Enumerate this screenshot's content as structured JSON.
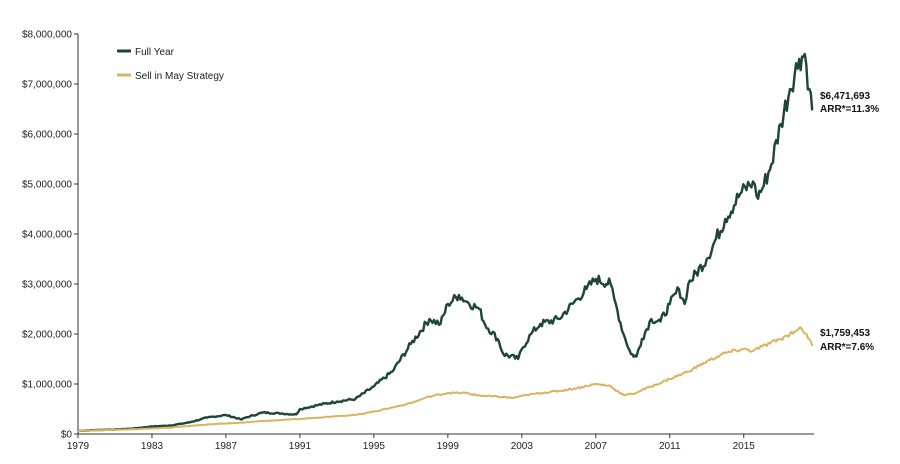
{
  "chart_data": {
    "type": "line",
    "title": "",
    "xlabel": "",
    "ylabel": "",
    "xlim": [
      1979,
      2018.8
    ],
    "ylim": [
      0,
      8000000
    ],
    "x_ticks": [
      "1979",
      "1983",
      "1987",
      "1991",
      "1995",
      "1999",
      "2003",
      "2007",
      "2011",
      "2015"
    ],
    "y_ticks": [
      "$0",
      "$1,000,000",
      "$2,000,000",
      "$3,000,000",
      "$4,000,000",
      "$5,000,000",
      "$6,000,000",
      "$7,000,000",
      "$8,000,000"
    ],
    "grid": false,
    "legend_position": "top-left",
    "series": [
      {
        "name": "Full Year",
        "color": "#1d4634",
        "end_value_label": "$6,471,693",
        "end_rate_label": "ARR*=11.3%",
        "points": [
          [
            1979,
            60000
          ],
          [
            1980,
            80000
          ],
          [
            1981,
            90000
          ],
          [
            1982,
            110000
          ],
          [
            1983,
            150000
          ],
          [
            1984,
            170000
          ],
          [
            1985,
            230000
          ],
          [
            1986,
            330000
          ],
          [
            1987,
            380000
          ],
          [
            1987.85,
            290000
          ],
          [
            1988,
            320000
          ],
          [
            1989,
            430000
          ],
          [
            1990,
            410000
          ],
          [
            1990.8,
            390000
          ],
          [
            1991,
            500000
          ],
          [
            1992,
            580000
          ],
          [
            1993,
            650000
          ],
          [
            1994,
            700000
          ],
          [
            1995,
            950000
          ],
          [
            1996,
            1250000
          ],
          [
            1997,
            1800000
          ],
          [
            1998,
            2300000
          ],
          [
            1998.6,
            2200000
          ],
          [
            1999,
            2600000
          ],
          [
            1999.6,
            2780000
          ],
          [
            2000,
            2650000
          ],
          [
            2000.7,
            2500000
          ],
          [
            2001,
            2200000
          ],
          [
            2001.7,
            1900000
          ],
          [
            2002,
            1600000
          ],
          [
            2002.8,
            1500000
          ],
          [
            2003,
            1700000
          ],
          [
            2003.5,
            2000000
          ],
          [
            2004,
            2200000
          ],
          [
            2005,
            2300000
          ],
          [
            2006,
            2700000
          ],
          [
            2006.5,
            2900000
          ],
          [
            2007,
            3100000
          ],
          [
            2007.8,
            3000000
          ],
          [
            2008,
            2700000
          ],
          [
            2008.5,
            2000000
          ],
          [
            2008.9,
            1600000
          ],
          [
            2009.2,
            1550000
          ],
          [
            2009.5,
            1900000
          ],
          [
            2010,
            2300000
          ],
          [
            2010.5,
            2250000
          ],
          [
            2011,
            2600000
          ],
          [
            2011.5,
            2900000
          ],
          [
            2011.8,
            2600000
          ],
          [
            2012,
            3000000
          ],
          [
            2013,
            3500000
          ],
          [
            2014,
            4300000
          ],
          [
            2014.8,
            4800000
          ],
          [
            2015.5,
            5050000
          ],
          [
            2015.7,
            4750000
          ],
          [
            2016,
            4900000
          ],
          [
            2016.5,
            5400000
          ],
          [
            2017,
            6200000
          ],
          [
            2017.5,
            6900000
          ],
          [
            2018,
            7500000
          ],
          [
            2018.3,
            7600000
          ],
          [
            2018.55,
            6900000
          ],
          [
            2018.7,
            6471693
          ]
        ]
      },
      {
        "name": "Sell in May Strategy",
        "color": "#d8b45f",
        "end_value_label": "$1,759,453",
        "end_rate_label": "ARR*=7.6%",
        "points": [
          [
            1979,
            60000
          ],
          [
            1980,
            75000
          ],
          [
            1981,
            85000
          ],
          [
            1982,
            95000
          ],
          [
            1983,
            110000
          ],
          [
            1984,
            130000
          ],
          [
            1985,
            160000
          ],
          [
            1986,
            190000
          ],
          [
            1987,
            210000
          ],
          [
            1988,
            230000
          ],
          [
            1989,
            260000
          ],
          [
            1990,
            280000
          ],
          [
            1991,
            300000
          ],
          [
            1992,
            330000
          ],
          [
            1993,
            360000
          ],
          [
            1994,
            380000
          ],
          [
            1995,
            450000
          ],
          [
            1996,
            530000
          ],
          [
            1997,
            620000
          ],
          [
            1998,
            750000
          ],
          [
            1999,
            820000
          ],
          [
            2000,
            820000
          ],
          [
            2000.5,
            780000
          ],
          [
            2001,
            760000
          ],
          [
            2002,
            740000
          ],
          [
            2002.5,
            720000
          ],
          [
            2003,
            760000
          ],
          [
            2004,
            820000
          ],
          [
            2005,
            860000
          ],
          [
            2006,
            920000
          ],
          [
            2007,
            1000000
          ],
          [
            2007.8,
            960000
          ],
          [
            2008,
            900000
          ],
          [
            2008.5,
            780000
          ],
          [
            2009,
            800000
          ],
          [
            2009.5,
            880000
          ],
          [
            2010,
            950000
          ],
          [
            2011,
            1100000
          ],
          [
            2012,
            1250000
          ],
          [
            2013,
            1450000
          ],
          [
            2014,
            1620000
          ],
          [
            2015,
            1700000
          ],
          [
            2015.5,
            1660000
          ],
          [
            2016,
            1750000
          ],
          [
            2017,
            1900000
          ],
          [
            2017.5,
            2000000
          ],
          [
            2018,
            2120000
          ],
          [
            2018.4,
            2000000
          ],
          [
            2018.7,
            1759453
          ]
        ]
      }
    ]
  }
}
